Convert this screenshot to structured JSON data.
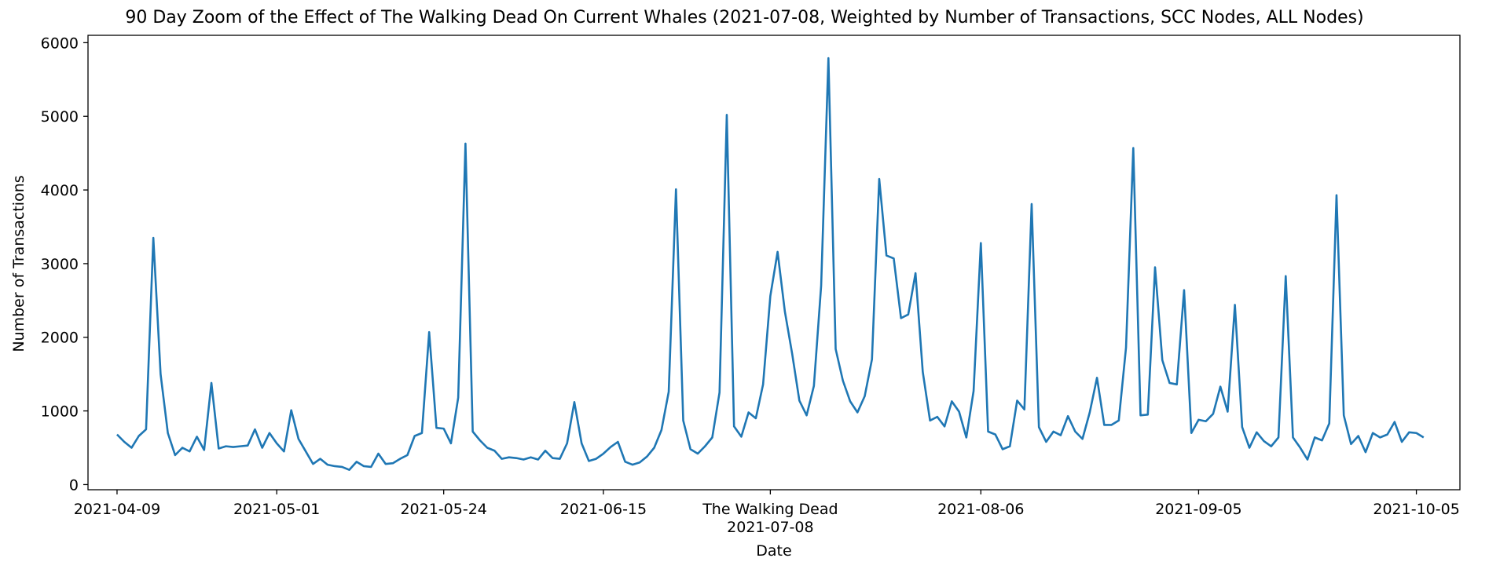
{
  "chart_data": {
    "type": "line",
    "title": "90 Day Zoom of the Effect of The Walking Dead On Current Whales (2021-07-08, Weighted by Number of Transactions, SCC Nodes, ALL Nodes)",
    "xlabel": "Date",
    "ylabel": "Number of Transactions",
    "ylim": [
      -70,
      6100
    ],
    "yticks": [
      0,
      1000,
      2000,
      3000,
      4000,
      5000,
      6000
    ],
    "xlim": [
      "2021-04-05",
      "2021-10-11"
    ],
    "xticks": [
      {
        "date": "2021-04-09",
        "label": "2021-04-09"
      },
      {
        "date": "2021-05-01",
        "label": "2021-05-01"
      },
      {
        "date": "2021-05-24",
        "label": "2021-05-24"
      },
      {
        "date": "2021-06-15",
        "label": "2021-06-15"
      },
      {
        "date": "2021-07-08",
        "label": "The Walking Dead",
        "label2": "2021-07-08"
      },
      {
        "date": "2021-08-06",
        "label": "2021-08-06"
      },
      {
        "date": "2021-09-05",
        "label": "2021-09-05"
      },
      {
        "date": "2021-10-05",
        "label": "2021-10-05"
      }
    ],
    "grid": false,
    "line_color": "#1f77b4",
    "series": [
      {
        "start_date": "2021-04-09",
        "values": [
          680,
          580,
          500,
          660,
          750,
          3350,
          1500,
          700,
          400,
          500,
          450,
          650,
          470,
          1380,
          490,
          520,
          510,
          520,
          530,
          750,
          500,
          700,
          560,
          450,
          1010,
          620,
          450,
          280,
          350,
          270,
          250,
          240,
          200,
          310,
          250,
          240,
          420,
          280,
          290,
          350,
          400,
          660,
          700,
          2070,
          770,
          760,
          560,
          1180,
          4630,
          720,
          600,
          500,
          460,
          350,
          370,
          360,
          340,
          370,
          340,
          460,
          360,
          350,
          560,
          1120,
          560,
          320,
          350,
          420,
          510,
          580,
          310,
          270,
          300,
          380,
          500,
          740,
          1260,
          4010,
          870,
          480,
          420,
          520,
          640,
          1250,
          5020,
          790,
          650,
          980,
          900,
          1360,
          2560,
          3160,
          2350,
          1780,
          1140,
          940,
          1340,
          2700,
          5790,
          1840,
          1410,
          1130,
          980,
          1200,
          1700,
          4150,
          3110,
          3070,
          2260,
          2310,
          2870,
          1530,
          870,
          920,
          790,
          1130,
          990,
          640,
          1270,
          3280,
          720,
          680,
          480,
          520,
          1140,
          1020,
          3810,
          780,
          580,
          720,
          670,
          930,
          720,
          620,
          980,
          1450,
          810,
          810,
          870,
          1860,
          4570,
          940,
          950,
          2950,
          1690,
          1380,
          1360,
          2640,
          700,
          880,
          860,
          960,
          1330,
          990,
          2440,
          780,
          500,
          710,
          590,
          520,
          640,
          2830,
          640,
          500,
          340,
          640,
          600,
          830,
          3930,
          940,
          550,
          660,
          440,
          700,
          640,
          680,
          850,
          580,
          710,
          700,
          640
        ]
      }
    ]
  }
}
